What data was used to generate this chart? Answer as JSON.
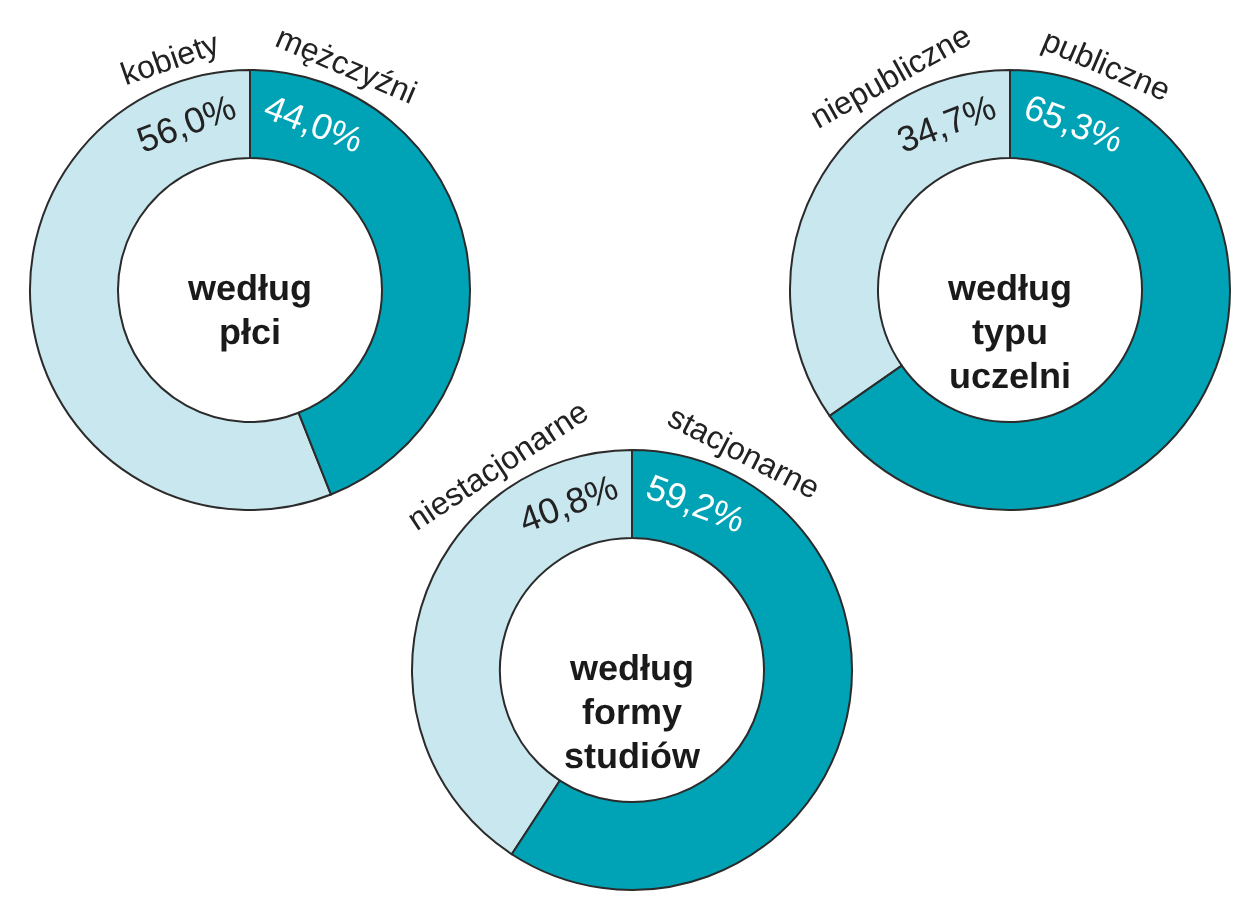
{
  "chart_data": [
    {
      "type": "donut",
      "title": "według płci",
      "categories": [
        "kobiety",
        "mężczyźni"
      ],
      "values": [
        56.0,
        44.0
      ],
      "colors": [
        "#c9e7ef",
        "#00a3b5"
      ],
      "value_labels": [
        "56,0%",
        "44,0%"
      ]
    },
    {
      "type": "donut",
      "title": "według typu uczelni",
      "categories": [
        "niepubliczne",
        "publiczne"
      ],
      "values": [
        34.7,
        65.3
      ],
      "colors": [
        "#c9e7ef",
        "#00a3b5"
      ],
      "value_labels": [
        "34,7%",
        "65,3%"
      ]
    },
    {
      "type": "donut",
      "title": "według formy studiów",
      "categories": [
        "niestacjonarne",
        "stacjonarne"
      ],
      "values": [
        40.8,
        59.2
      ],
      "colors": [
        "#c9e7ef",
        "#00a3b5"
      ],
      "value_labels": [
        "40,8%",
        "59,2%"
      ]
    }
  ]
}
